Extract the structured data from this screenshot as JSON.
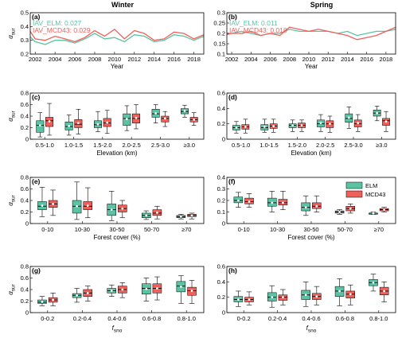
{
  "column_titles": [
    "Winter",
    "Spring"
  ],
  "colors": {
    "ELM": "#5cc2a4",
    "MCD43": "#f0605a"
  },
  "legend": [
    "ELM",
    "MCD43"
  ],
  "y_symbol": "α",
  "y_sub": "sur",
  "x_sub_symbol": "f",
  "x_sub_text": "sno",
  "chart_data": [
    {
      "id": "a",
      "panel_label": "(a)",
      "type": "line",
      "xlabel": "Year",
      "xlim": [
        2001.5,
        2019
      ],
      "ylim": [
        0.2,
        0.5
      ],
      "xticks": [
        2002,
        2004,
        2006,
        2008,
        2010,
        2012,
        2014,
        2016,
        2018
      ],
      "yticks": [
        0.2,
        0.3,
        0.4,
        0.5
      ],
      "annotations": [
        {
          "text": "IAV_ELM: 0.027",
          "series": "ELM"
        },
        {
          "text": "IAV_MCD43: 0.029",
          "series": "MCD43"
        }
      ],
      "x": [
        2001,
        2002,
        2003,
        2004,
        2005,
        2006,
        2007,
        2008,
        2009,
        2010,
        2011,
        2012,
        2013,
        2014,
        2015,
        2016,
        2017,
        2018,
        2019
      ],
      "series": [
        {
          "name": "ELM",
          "values": [
            0.36,
            0.29,
            0.27,
            0.3,
            0.3,
            0.28,
            0.31,
            0.35,
            0.31,
            0.32,
            0.29,
            0.34,
            0.33,
            0.29,
            0.3,
            0.34,
            0.33,
            0.3,
            0.33
          ]
        },
        {
          "name": "MCD43",
          "values": [
            0.42,
            0.31,
            0.3,
            0.33,
            0.31,
            0.29,
            0.32,
            0.37,
            0.33,
            0.38,
            0.31,
            0.37,
            0.35,
            0.3,
            0.31,
            0.36,
            0.35,
            0.31,
            0.34
          ]
        }
      ]
    },
    {
      "id": "b",
      "panel_label": "(b)",
      "type": "line",
      "xlabel": "Year",
      "xlim": [
        2001.5,
        2019
      ],
      "ylim": [
        0.1,
        0.3
      ],
      "xticks": [
        2002,
        2004,
        2006,
        2008,
        2010,
        2012,
        2014,
        2016,
        2018
      ],
      "yticks": [
        0.1,
        0.15,
        0.2,
        0.25,
        0.3
      ],
      "annotations": [
        {
          "text": "IAV_ELM: 0.011",
          "series": "ELM"
        },
        {
          "text": "IAV_MCD43: 0.018",
          "series": "MCD43"
        }
      ],
      "x": [
        2001,
        2002,
        2003,
        2004,
        2005,
        2006,
        2007,
        2008,
        2009,
        2010,
        2011,
        2012,
        2013,
        2014,
        2015,
        2016,
        2017,
        2018,
        2019
      ],
      "series": [
        {
          "name": "ELM",
          "values": [
            0.2,
            0.2,
            0.21,
            0.2,
            0.19,
            0.2,
            0.2,
            0.22,
            0.21,
            0.21,
            0.21,
            0.21,
            0.2,
            0.21,
            0.19,
            0.2,
            0.21,
            0.21,
            0.22
          ]
        },
        {
          "name": "MCD43",
          "values": [
            0.19,
            0.2,
            0.2,
            0.21,
            0.19,
            0.2,
            0.19,
            0.23,
            0.22,
            0.21,
            0.22,
            0.21,
            0.2,
            0.19,
            0.17,
            0.18,
            0.19,
            0.21,
            0.23
          ]
        }
      ]
    },
    {
      "id": "c",
      "panel_label": "(c)",
      "type": "box",
      "xlabel": "Elevation (km)",
      "ylim": [
        0,
        0.8
      ],
      "yticks": [
        0,
        0.2,
        0.4,
        0.6,
        0.8
      ],
      "categories": [
        "0.5-1.0",
        "1.0-1.5",
        "1.5-2.0",
        "2.0-2.5",
        "2.5-3.0",
        "≥3.0"
      ],
      "series": [
        {
          "name": "ELM",
          "boxes": [
            {
              "min": 0.04,
              "q1": 0.12,
              "median": 0.24,
              "q3": 0.32,
              "max": 0.46,
              "mean": 0.24
            },
            {
              "min": 0.07,
              "q1": 0.16,
              "median": 0.22,
              "q3": 0.3,
              "max": 0.42,
              "mean": 0.23
            },
            {
              "min": 0.13,
              "q1": 0.2,
              "median": 0.25,
              "q3": 0.32,
              "max": 0.48,
              "mean": 0.26
            },
            {
              "min": 0.15,
              "q1": 0.24,
              "median": 0.36,
              "q3": 0.44,
              "max": 0.58,
              "mean": 0.35
            },
            {
              "min": 0.28,
              "q1": 0.38,
              "median": 0.44,
              "q3": 0.52,
              "max": 0.6,
              "mean": 0.45
            },
            {
              "min": 0.38,
              "q1": 0.44,
              "median": 0.48,
              "q3": 0.53,
              "max": 0.59,
              "mean": 0.49
            }
          ]
        },
        {
          "name": "MCD43",
          "boxes": [
            {
              "min": 0.07,
              "q1": 0.22,
              "median": 0.32,
              "q3": 0.38,
              "max": 0.62,
              "mean": 0.31
            },
            {
              "min": 0.09,
              "q1": 0.2,
              "median": 0.26,
              "q3": 0.34,
              "max": 0.52,
              "mean": 0.28
            },
            {
              "min": 0.1,
              "q1": 0.22,
              "median": 0.28,
              "q3": 0.36,
              "max": 0.5,
              "mean": 0.29
            },
            {
              "min": 0.18,
              "q1": 0.28,
              "median": 0.36,
              "q3": 0.44,
              "max": 0.6,
              "mean": 0.37
            },
            {
              "min": 0.22,
              "q1": 0.3,
              "median": 0.36,
              "q3": 0.4,
              "max": 0.48,
              "mean": 0.36
            },
            {
              "min": 0.24,
              "q1": 0.3,
              "median": 0.34,
              "q3": 0.38,
              "max": 0.46,
              "mean": 0.34
            }
          ]
        }
      ]
    },
    {
      "id": "d",
      "panel_label": "(d)",
      "type": "box",
      "xlabel": "Elevation (km)",
      "ylim": [
        0,
        0.6
      ],
      "yticks": [
        0,
        0.2,
        0.4,
        0.6
      ],
      "categories": [
        "0.5-1.0",
        "1.0-1.5",
        "1.5-2.0",
        "2.0-2.5",
        "2.5-3.0",
        "≥3.0"
      ],
      "series": [
        {
          "name": "ELM",
          "boxes": [
            {
              "min": 0.08,
              "q1": 0.12,
              "median": 0.15,
              "q3": 0.18,
              "max": 0.23,
              "mean": 0.15
            },
            {
              "min": 0.09,
              "q1": 0.12,
              "median": 0.15,
              "q3": 0.19,
              "max": 0.26,
              "mean": 0.16
            },
            {
              "min": 0.1,
              "q1": 0.15,
              "median": 0.18,
              "q3": 0.2,
              "max": 0.25,
              "mean": 0.18
            },
            {
              "min": 0.1,
              "q1": 0.16,
              "median": 0.2,
              "q3": 0.25,
              "max": 0.32,
              "mean": 0.21
            },
            {
              "min": 0.14,
              "q1": 0.22,
              "median": 0.27,
              "q3": 0.33,
              "max": 0.42,
              "mean": 0.28
            },
            {
              "min": 0.24,
              "q1": 0.3,
              "median": 0.34,
              "q3": 0.38,
              "max": 0.43,
              "mean": 0.34
            }
          ]
        },
        {
          "name": "MCD43",
          "boxes": [
            {
              "min": 0.08,
              "q1": 0.13,
              "median": 0.16,
              "q3": 0.19,
              "max": 0.26,
              "mean": 0.16
            },
            {
              "min": 0.09,
              "q1": 0.14,
              "median": 0.17,
              "q3": 0.2,
              "max": 0.26,
              "mean": 0.17
            },
            {
              "min": 0.1,
              "q1": 0.15,
              "median": 0.18,
              "q3": 0.21,
              "max": 0.25,
              "mean": 0.18
            },
            {
              "min": 0.09,
              "q1": 0.15,
              "median": 0.2,
              "q3": 0.24,
              "max": 0.3,
              "mean": 0.2
            },
            {
              "min": 0.1,
              "q1": 0.16,
              "median": 0.2,
              "q3": 0.25,
              "max": 0.32,
              "mean": 0.21
            },
            {
              "min": 0.1,
              "q1": 0.18,
              "median": 0.24,
              "q3": 0.27,
              "max": 0.36,
              "mean": 0.23
            }
          ]
        }
      ]
    },
    {
      "id": "e",
      "panel_label": "(e)",
      "type": "box",
      "xlabel": "Forest cover (%)",
      "ylim": [
        0,
        0.8
      ],
      "yticks": [
        0,
        0.2,
        0.4,
        0.6,
        0.8
      ],
      "categories": [
        "0-10",
        "10-30",
        "30-50",
        "50-70",
        "≥70"
      ],
      "series": [
        {
          "name": "ELM",
          "boxes": [
            {
              "min": 0.12,
              "q1": 0.24,
              "median": 0.3,
              "q3": 0.38,
              "max": 0.63,
              "mean": 0.31
            },
            {
              "min": 0.07,
              "q1": 0.18,
              "median": 0.3,
              "q3": 0.4,
              "max": 0.72,
              "mean": 0.3
            },
            {
              "min": 0.05,
              "q1": 0.14,
              "median": 0.24,
              "q3": 0.34,
              "max": 0.56,
              "mean": 0.24
            },
            {
              "min": 0.07,
              "q1": 0.1,
              "median": 0.14,
              "q3": 0.18,
              "max": 0.22,
              "mean": 0.14
            },
            {
              "min": 0.08,
              "q1": 0.1,
              "median": 0.12,
              "q3": 0.14,
              "max": 0.16,
              "mean": 0.12
            }
          ]
        },
        {
          "name": "MCD43",
          "boxes": [
            {
              "min": 0.14,
              "q1": 0.28,
              "median": 0.34,
              "q3": 0.4,
              "max": 0.58,
              "mean": 0.34
            },
            {
              "min": 0.1,
              "q1": 0.24,
              "median": 0.3,
              "q3": 0.38,
              "max": 0.62,
              "mean": 0.31
            },
            {
              "min": 0.1,
              "q1": 0.2,
              "median": 0.26,
              "q3": 0.32,
              "max": 0.4,
              "mean": 0.26
            },
            {
              "min": 0.08,
              "q1": 0.14,
              "median": 0.18,
              "q3": 0.24,
              "max": 0.3,
              "mean": 0.19
            },
            {
              "min": 0.08,
              "q1": 0.12,
              "median": 0.14,
              "q3": 0.16,
              "max": 0.18,
              "mean": 0.14
            }
          ]
        }
      ]
    },
    {
      "id": "f",
      "panel_label": "(f)",
      "type": "box",
      "xlabel": "Forest cover (%)",
      "ylim": [
        0,
        0.4
      ],
      "yticks": [
        0,
        0.1,
        0.2,
        0.3,
        0.4
      ],
      "categories": [
        "0-10",
        "10-30",
        "30-50",
        "50-70",
        "≥70"
      ],
      "series": [
        {
          "name": "ELM",
          "boxes": [
            {
              "min": 0.14,
              "q1": 0.18,
              "median": 0.2,
              "q3": 0.23,
              "max": 0.27,
              "mean": 0.2
            },
            {
              "min": 0.1,
              "q1": 0.15,
              "median": 0.18,
              "q3": 0.22,
              "max": 0.28,
              "mean": 0.18
            },
            {
              "min": 0.07,
              "q1": 0.11,
              "median": 0.14,
              "q3": 0.18,
              "max": 0.24,
              "mean": 0.14
            },
            {
              "min": 0.08,
              "q1": 0.09,
              "median": 0.1,
              "q3": 0.11,
              "max": 0.12,
              "mean": 0.1
            },
            {
              "min": 0.08,
              "q1": 0.08,
              "median": 0.09,
              "q3": 0.09,
              "max": 0.1,
              "mean": 0.09
            }
          ]
        },
        {
          "name": "MCD43",
          "boxes": [
            {
              "min": 0.14,
              "q1": 0.17,
              "median": 0.19,
              "q3": 0.22,
              "max": 0.26,
              "mean": 0.19
            },
            {
              "min": 0.12,
              "q1": 0.16,
              "median": 0.18,
              "q3": 0.21,
              "max": 0.28,
              "mean": 0.18
            },
            {
              "min": 0.1,
              "q1": 0.13,
              "median": 0.15,
              "q3": 0.18,
              "max": 0.24,
              "mean": 0.15
            },
            {
              "min": 0.09,
              "q1": 0.11,
              "median": 0.13,
              "q3": 0.15,
              "max": 0.17,
              "mean": 0.13
            },
            {
              "min": 0.1,
              "q1": 0.11,
              "median": 0.12,
              "q3": 0.13,
              "max": 0.14,
              "mean": 0.12
            }
          ]
        }
      ]
    },
    {
      "id": "g",
      "panel_label": "(g)",
      "type": "box",
      "xlabel_symbol": true,
      "ylim": [
        0,
        0.8
      ],
      "yticks": [
        0,
        0.2,
        0.4,
        0.6,
        0.8
      ],
      "categories": [
        "0-0.2",
        "0.2-0.4",
        "0.4-0.6",
        "0.6-0.8",
        "0.8-1.0"
      ],
      "series": [
        {
          "name": "ELM",
          "boxes": [
            {
              "min": 0.12,
              "q1": 0.16,
              "median": 0.18,
              "q3": 0.22,
              "max": 0.28,
              "mean": 0.19
            },
            {
              "min": 0.18,
              "q1": 0.26,
              "median": 0.3,
              "q3": 0.33,
              "max": 0.42,
              "mean": 0.3
            },
            {
              "min": 0.28,
              "q1": 0.34,
              "median": 0.38,
              "q3": 0.42,
              "max": 0.48,
              "mean": 0.38
            },
            {
              "min": 0.2,
              "q1": 0.32,
              "median": 0.42,
              "q3": 0.5,
              "max": 0.6,
              "mean": 0.41
            },
            {
              "min": 0.16,
              "q1": 0.36,
              "median": 0.46,
              "q3": 0.54,
              "max": 0.64,
              "mean": 0.45
            }
          ]
        },
        {
          "name": "MCD43",
          "boxes": [
            {
              "min": 0.12,
              "q1": 0.18,
              "median": 0.22,
              "q3": 0.26,
              "max": 0.34,
              "mean": 0.22
            },
            {
              "min": 0.2,
              "q1": 0.28,
              "median": 0.34,
              "q3": 0.4,
              "max": 0.46,
              "mean": 0.34
            },
            {
              "min": 0.26,
              "q1": 0.34,
              "median": 0.4,
              "q3": 0.46,
              "max": 0.52,
              "mean": 0.4
            },
            {
              "min": 0.22,
              "q1": 0.34,
              "median": 0.42,
              "q3": 0.5,
              "max": 0.62,
              "mean": 0.42
            },
            {
              "min": 0.16,
              "q1": 0.3,
              "median": 0.38,
              "q3": 0.44,
              "max": 0.56,
              "mean": 0.38
            }
          ]
        }
      ]
    },
    {
      "id": "h",
      "panel_label": "(h)",
      "type": "box",
      "xlabel_symbol": true,
      "ylim": [
        0,
        0.6
      ],
      "yticks": [
        0,
        0.2,
        0.4,
        0.6
      ],
      "categories": [
        "0-0.2",
        "0.2-0.4",
        "0.4-0.6",
        "0.6-0.8",
        "0.8-1.0"
      ],
      "series": [
        {
          "name": "ELM",
          "boxes": [
            {
              "min": 0.08,
              "q1": 0.14,
              "median": 0.17,
              "q3": 0.21,
              "max": 0.28,
              "mean": 0.17
            },
            {
              "min": 0.07,
              "q1": 0.15,
              "median": 0.2,
              "q3": 0.26,
              "max": 0.35,
              "mean": 0.2
            },
            {
              "min": 0.08,
              "q1": 0.17,
              "median": 0.23,
              "q3": 0.29,
              "max": 0.4,
              "mean": 0.23
            },
            {
              "min": 0.09,
              "q1": 0.21,
              "median": 0.28,
              "q3": 0.34,
              "max": 0.44,
              "mean": 0.28
            },
            {
              "min": 0.28,
              "q1": 0.35,
              "median": 0.39,
              "q3": 0.43,
              "max": 0.5,
              "mean": 0.39
            }
          ]
        },
        {
          "name": "MCD43",
          "boxes": [
            {
              "min": 0.1,
              "q1": 0.14,
              "median": 0.17,
              "q3": 0.2,
              "max": 0.27,
              "mean": 0.17
            },
            {
              "min": 0.1,
              "q1": 0.16,
              "median": 0.2,
              "q3": 0.23,
              "max": 0.3,
              "mean": 0.2
            },
            {
              "min": 0.1,
              "q1": 0.17,
              "median": 0.21,
              "q3": 0.25,
              "max": 0.34,
              "mean": 0.21
            },
            {
              "min": 0.1,
              "q1": 0.19,
              "median": 0.24,
              "q3": 0.28,
              "max": 0.36,
              "mean": 0.24
            },
            {
              "min": 0.14,
              "q1": 0.23,
              "median": 0.28,
              "q3": 0.33,
              "max": 0.4,
              "mean": 0.28
            }
          ]
        }
      ]
    }
  ]
}
